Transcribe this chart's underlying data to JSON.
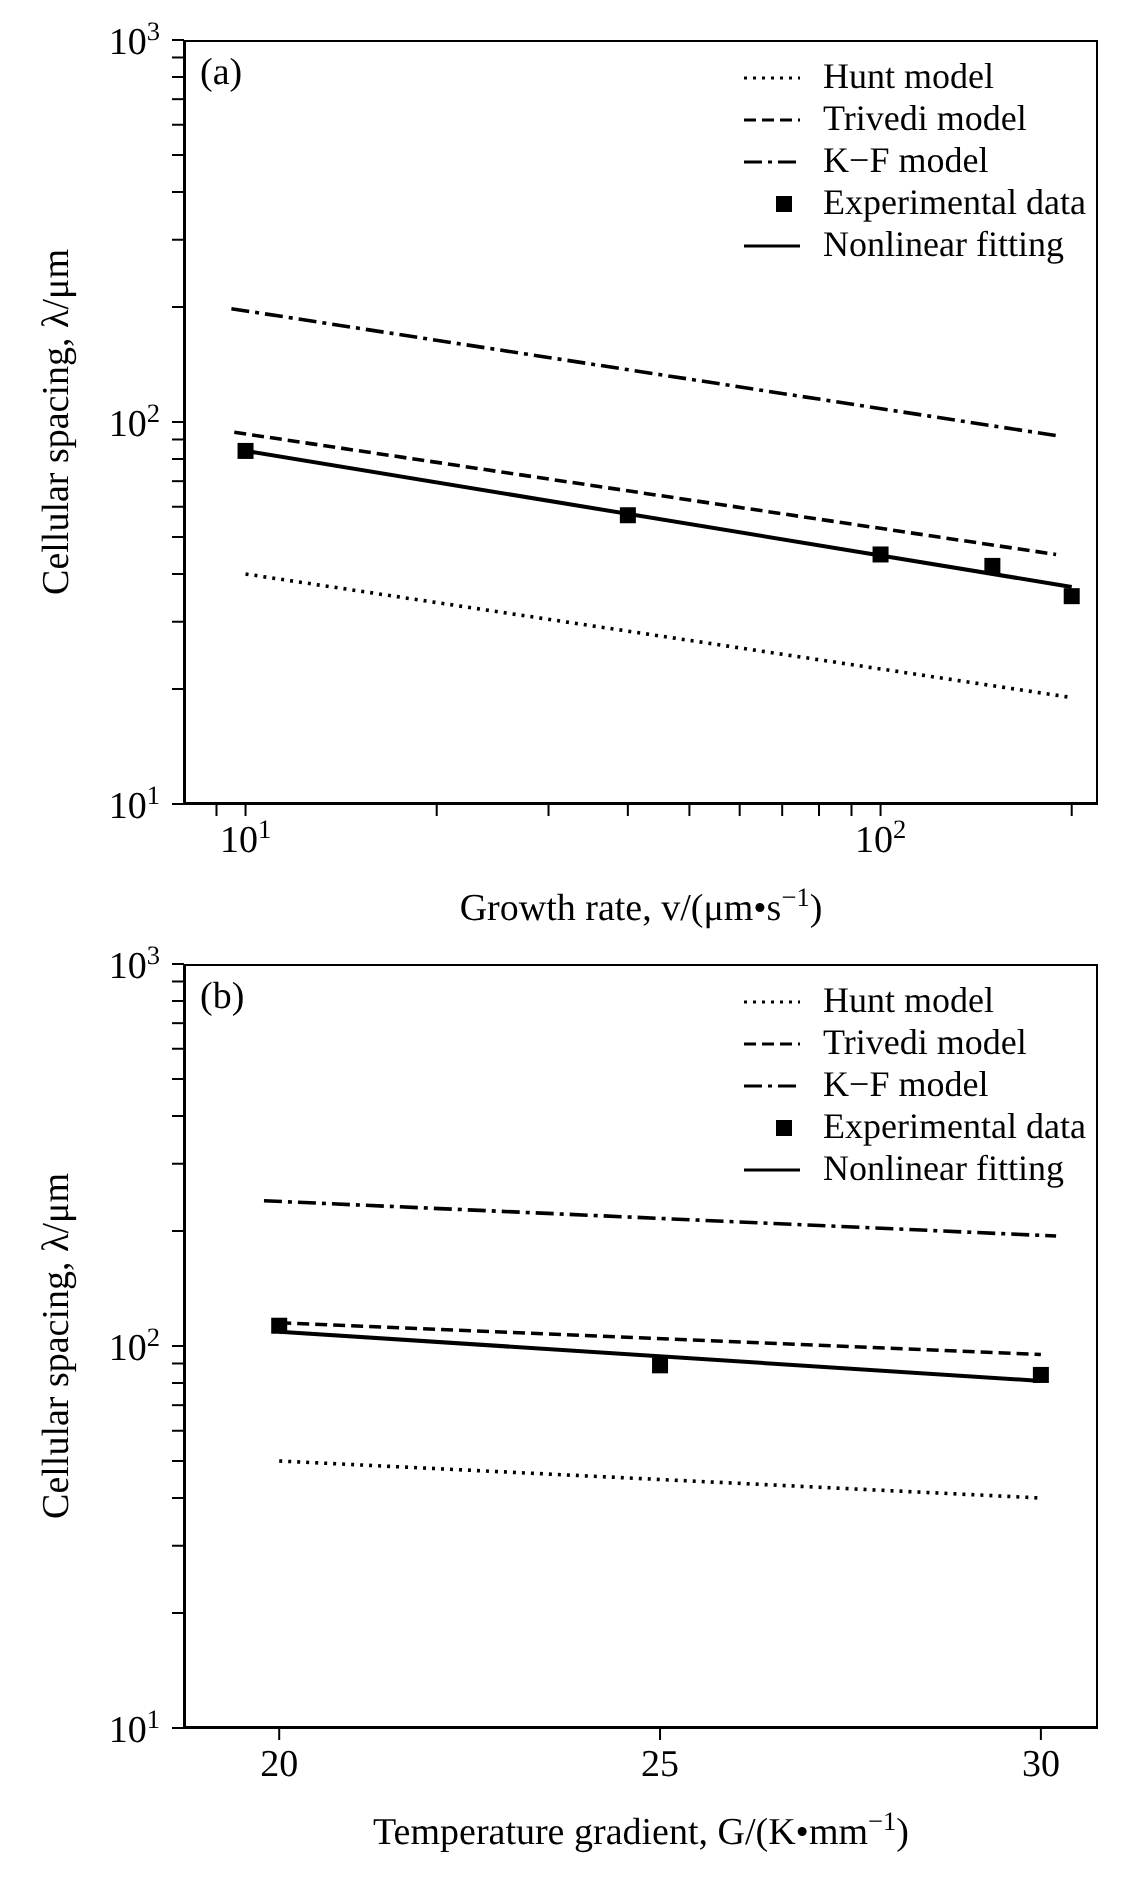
{
  "chart_data": [
    {
      "type": "line",
      "annotations": [
        "(a)"
      ],
      "xlabel": "Growth rate, v/(μm•s$^{−1}$)",
      "ylabel": "Cellular spacing, λ/μm",
      "log": "xy",
      "xlim": [
        8,
        220
      ],
      "ylim": [
        10,
        1000
      ],
      "xticks": [
        {
          "value": 9,
          "label": null
        },
        {
          "value": 10,
          "label": "10$^{1}$"
        },
        {
          "value": 20,
          "label": null
        },
        {
          "value": 30,
          "label": null
        },
        {
          "value": 40,
          "label": null
        },
        {
          "value": 50,
          "label": null
        },
        {
          "value": 60,
          "label": null
        },
        {
          "value": 70,
          "label": null
        },
        {
          "value": 80,
          "label": null
        },
        {
          "value": 90,
          "label": null
        },
        {
          "value": 100,
          "label": "10$^{2}$"
        },
        {
          "value": 200,
          "label": null
        }
      ],
      "yticks": [
        {
          "value": 10,
          "label": "10$^{1}$"
        },
        {
          "value": 20,
          "label": null
        },
        {
          "value": 30,
          "label": null
        },
        {
          "value": 40,
          "label": null
        },
        {
          "value": 50,
          "label": null
        },
        {
          "value": 60,
          "label": null
        },
        {
          "value": 70,
          "label": null
        },
        {
          "value": 80,
          "label": null
        },
        {
          "value": 90,
          "label": null
        },
        {
          "value": 100,
          "label": "10$^{2}$"
        },
        {
          "value": 200,
          "label": null
        },
        {
          "value": 300,
          "label": null
        },
        {
          "value": 400,
          "label": null
        },
        {
          "value": 500,
          "label": null
        },
        {
          "value": 600,
          "label": null
        },
        {
          "value": 700,
          "label": null
        },
        {
          "value": 800,
          "label": null
        },
        {
          "value": 900,
          "label": null
        },
        {
          "value": 1000,
          "label": "10$^{3}$"
        }
      ],
      "grid": false,
      "legend": "top right",
      "series": [
        {
          "name": "Hunt model",
          "type": "line",
          "line_style": "dotted",
          "color": "#000000",
          "x": [
            10,
            200
          ],
          "values": [
            40,
            19
          ]
        },
        {
          "name": "Trivedi model",
          "type": "line",
          "line_style": "dashed",
          "color": "#000000",
          "x": [
            9.6,
            189
          ],
          "values": [
            94,
            45
          ]
        },
        {
          "name": "K−F model",
          "type": "line",
          "line_style": "dashdot",
          "color": "#000000",
          "x": [
            9.5,
            190
          ],
          "values": [
            198,
            92
          ]
        },
        {
          "name": "Experimental data",
          "type": "scatter",
          "marker": "square",
          "color": "#000000",
          "x": [
            10,
            40,
            100,
            150,
            200
          ],
          "values": [
            84,
            57,
            45,
            42,
            35
          ]
        },
        {
          "name": "Nonlinear fitting",
          "type": "line",
          "line_style": "solid",
          "color": "#000000",
          "x": [
            10,
            200
          ],
          "values": [
            84,
            37
          ]
        }
      ]
    },
    {
      "type": "line",
      "annotations": [
        "(b)"
      ],
      "xlabel": "Temperature gradient, G/(K•mm$^{−1}$)",
      "ylabel": "Cellular spacing, λ/μm",
      "log": "y",
      "xlim": [
        18.75,
        30.75
      ],
      "ylim": [
        10,
        1000
      ],
      "xticks": [
        20,
        25,
        30
      ],
      "yticks": [
        {
          "value": 10,
          "label": "10$^{1}$"
        },
        {
          "value": 20,
          "label": null
        },
        {
          "value": 30,
          "label": null
        },
        {
          "value": 40,
          "label": null
        },
        {
          "value": 50,
          "label": null
        },
        {
          "value": 60,
          "label": null
        },
        {
          "value": 70,
          "label": null
        },
        {
          "value": 80,
          "label": null
        },
        {
          "value": 90,
          "label": null
        },
        {
          "value": 100,
          "label": "10$^{2}$"
        },
        {
          "value": 200,
          "label": null
        },
        {
          "value": 300,
          "label": null
        },
        {
          "value": 400,
          "label": null
        },
        {
          "value": 500,
          "label": null
        },
        {
          "value": 600,
          "label": null
        },
        {
          "value": 700,
          "label": null
        },
        {
          "value": 800,
          "label": null
        },
        {
          "value": 900,
          "label": null
        },
        {
          "value": 1000,
          "label": "10$^{3}$"
        }
      ],
      "grid": false,
      "legend": "top right",
      "series": [
        {
          "name": "Hunt model",
          "type": "line",
          "line_style": "dotted",
          "color": "#000000",
          "x": [
            20,
            30
          ],
          "values": [
            50,
            40
          ]
        },
        {
          "name": "Trivedi model",
          "type": "line",
          "line_style": "dashed",
          "color": "#000000",
          "x": [
            20,
            30
          ],
          "values": [
            115,
            95
          ]
        },
        {
          "name": "K−F model",
          "type": "line",
          "line_style": "dashdot",
          "color": "#000000",
          "x": [
            19.8,
            30.2
          ],
          "values": [
            240,
            194
          ]
        },
        {
          "name": "Experimental data",
          "type": "scatter",
          "marker": "square",
          "color": "#000000",
          "x": [
            20,
            25,
            30
          ],
          "values": [
            113,
            89,
            84
          ]
        },
        {
          "name": "Nonlinear fitting",
          "type": "line",
          "line_style": "solid",
          "color": "#000000",
          "x": [
            20,
            30
          ],
          "values": [
            109,
            81
          ]
        }
      ]
    }
  ]
}
